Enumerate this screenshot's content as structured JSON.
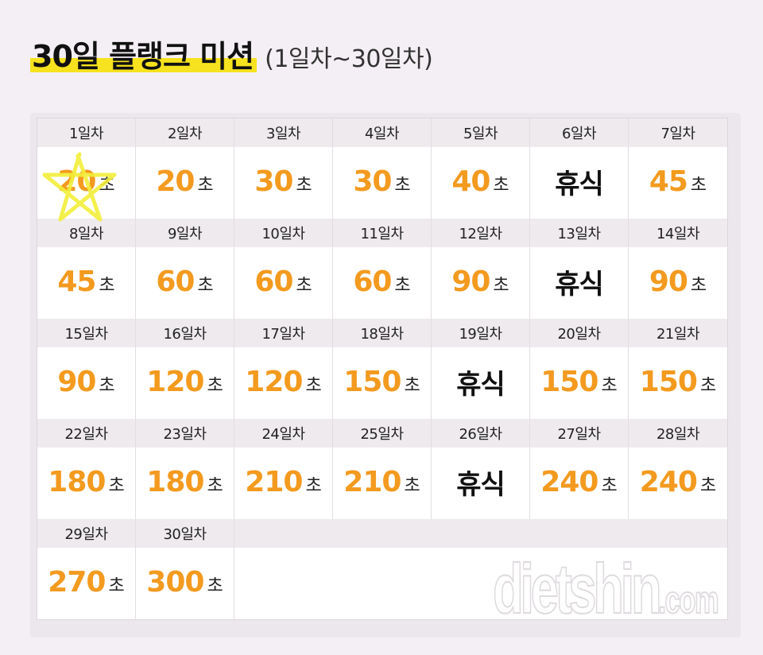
{
  "header": {
    "title": "30일 플랭크 미션",
    "subtitle": "(1일차~30일차)"
  },
  "colors": {
    "accent_number": "#f39a1f",
    "highlight": "#f6e21e",
    "day_band": "#eeeaee"
  },
  "unit": "초",
  "days": [
    {
      "day": "1일차",
      "value": "20",
      "unit": "초",
      "rest": false,
      "marked": true
    },
    {
      "day": "2일차",
      "value": "20",
      "unit": "초",
      "rest": false
    },
    {
      "day": "3일차",
      "value": "30",
      "unit": "초",
      "rest": false
    },
    {
      "day": "4일차",
      "value": "30",
      "unit": "초",
      "rest": false
    },
    {
      "day": "5일차",
      "value": "40",
      "unit": "초",
      "rest": false
    },
    {
      "day": "6일차",
      "value": "휴식",
      "unit": "",
      "rest": true
    },
    {
      "day": "7일차",
      "value": "45",
      "unit": "초",
      "rest": false
    },
    {
      "day": "8일차",
      "value": "45",
      "unit": "초",
      "rest": false
    },
    {
      "day": "9일차",
      "value": "60",
      "unit": "초",
      "rest": false
    },
    {
      "day": "10일차",
      "value": "60",
      "unit": "초",
      "rest": false
    },
    {
      "day": "11일차",
      "value": "60",
      "unit": "초",
      "rest": false
    },
    {
      "day": "12일차",
      "value": "90",
      "unit": "초",
      "rest": false
    },
    {
      "day": "13일차",
      "value": "휴식",
      "unit": "",
      "rest": true
    },
    {
      "day": "14일차",
      "value": "90",
      "unit": "초",
      "rest": false
    },
    {
      "day": "15일차",
      "value": "90",
      "unit": "초",
      "rest": false
    },
    {
      "day": "16일차",
      "value": "120",
      "unit": "초",
      "rest": false
    },
    {
      "day": "17일차",
      "value": "120",
      "unit": "초",
      "rest": false
    },
    {
      "day": "18일차",
      "value": "150",
      "unit": "초",
      "rest": false
    },
    {
      "day": "19일차",
      "value": "휴식",
      "unit": "",
      "rest": true
    },
    {
      "day": "20일차",
      "value": "150",
      "unit": "초",
      "rest": false
    },
    {
      "day": "21일차",
      "value": "150",
      "unit": "초",
      "rest": false
    },
    {
      "day": "22일차",
      "value": "180",
      "unit": "초",
      "rest": false
    },
    {
      "day": "23일차",
      "value": "180",
      "unit": "초",
      "rest": false
    },
    {
      "day": "24일차",
      "value": "210",
      "unit": "초",
      "rest": false
    },
    {
      "day": "25일차",
      "value": "210",
      "unit": "초",
      "rest": false
    },
    {
      "day": "26일차",
      "value": "휴식",
      "unit": "",
      "rest": true
    },
    {
      "day": "27일차",
      "value": "240",
      "unit": "초",
      "rest": false
    },
    {
      "day": "28일차",
      "value": "240",
      "unit": "초",
      "rest": false
    },
    {
      "day": "29일차",
      "value": "270",
      "unit": "초",
      "rest": false
    },
    {
      "day": "30일차",
      "value": "300",
      "unit": "초",
      "rest": false
    }
  ],
  "watermark": {
    "main": "dietshin",
    "suffix": ".com"
  }
}
